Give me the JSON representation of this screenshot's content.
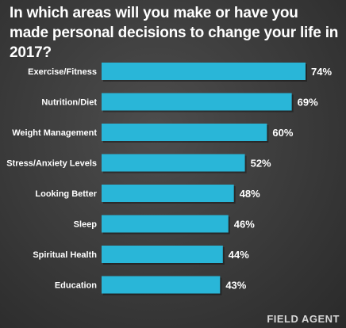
{
  "chart_data": {
    "type": "bar",
    "orientation": "horizontal",
    "title": "In which areas will you make or have you made personal decisions to change your life in 2017?",
    "categories": [
      "Exercise/Fitness",
      "Nutrition/Diet",
      "Weight Management",
      "Stress/Anxiety Levels",
      "Looking Better",
      "Sleep",
      "Spiritual Health",
      "Education"
    ],
    "values": [
      74,
      69,
      60,
      52,
      48,
      46,
      44,
      43
    ],
    "value_labels": [
      "74%",
      "69%",
      "60%",
      "52%",
      "48%",
      "46%",
      "44%",
      "43%"
    ],
    "unit": "%",
    "xlim": [
      0,
      74
    ],
    "grid": false,
    "legend": "none",
    "bar_color": "#29b6d8"
  },
  "branding": {
    "logo_text": "FIELD AGENT"
  }
}
